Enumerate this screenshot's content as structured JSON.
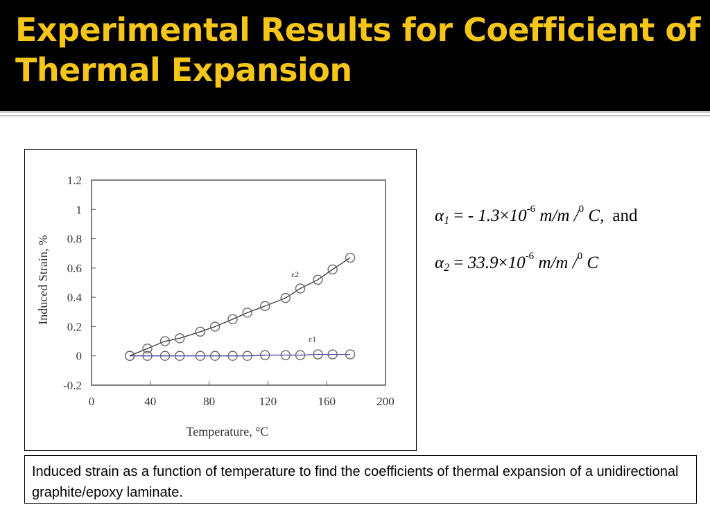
{
  "slide": {
    "title": "Experimental Results for Coefficient of Thermal Expansion",
    "caption": "Induced strain as a function of temperature to find the coefficients of thermal expansion of a unidirectional graphite/epoxy laminate."
  },
  "equations": {
    "alpha1": {
      "symbol": "α",
      "sub": "1",
      "equals": "=",
      "value": "- 1.3",
      "times": "×",
      "base": "10",
      "exp": "-6",
      "unit": "m/m /",
      "deg": "0",
      "unit_c": "C,",
      "suffix": "and"
    },
    "alpha2": {
      "symbol": "α",
      "sub": "2",
      "equals": "=",
      "value": "33.9",
      "times": "×",
      "base": "10",
      "exp": "-6",
      "unit": "m/m /",
      "deg": "0",
      "unit_c": "C"
    }
  },
  "chart_data": {
    "type": "line",
    "xlabel": "Temperature, °C",
    "ylabel": "Induced Strain, %",
    "xlim": [
      0,
      200
    ],
    "ylim": [
      -0.2,
      1.2
    ],
    "xticks": [
      0,
      40,
      80,
      120,
      160,
      200
    ],
    "yticks": [
      -0.2,
      0,
      0.2,
      0.4,
      0.6,
      0.8,
      1,
      1.2
    ],
    "ytick_labels": [
      "-0.2",
      "0",
      "0.2",
      "0.4",
      "0.6",
      "0.8",
      "1",
      "1.2"
    ],
    "xtick_labels": [
      "0",
      "40",
      "80",
      "120",
      "160",
      "200"
    ],
    "grid": false,
    "series": [
      {
        "name": "ε1",
        "line_color": "#3a3aa0",
        "x": [
          26,
          38,
          50,
          60,
          74,
          84,
          96,
          106,
          118,
          132,
          142,
          154,
          164,
          176
        ],
        "y": [
          0.0,
          0.0,
          0.0,
          0.0,
          0.0,
          0.0,
          0.0,
          0.0,
          0.005,
          0.005,
          0.005,
          0.01,
          0.01,
          0.01
        ]
      },
      {
        "name": "ε2",
        "line_color": "#333333",
        "x": [
          26,
          38,
          50,
          60,
          74,
          84,
          96,
          106,
          118,
          132,
          142,
          154,
          164,
          176
        ],
        "y": [
          0.0,
          0.05,
          0.1,
          0.12,
          0.165,
          0.2,
          0.25,
          0.295,
          0.34,
          0.395,
          0.46,
          0.52,
          0.59,
          0.67
        ]
      }
    ]
  }
}
